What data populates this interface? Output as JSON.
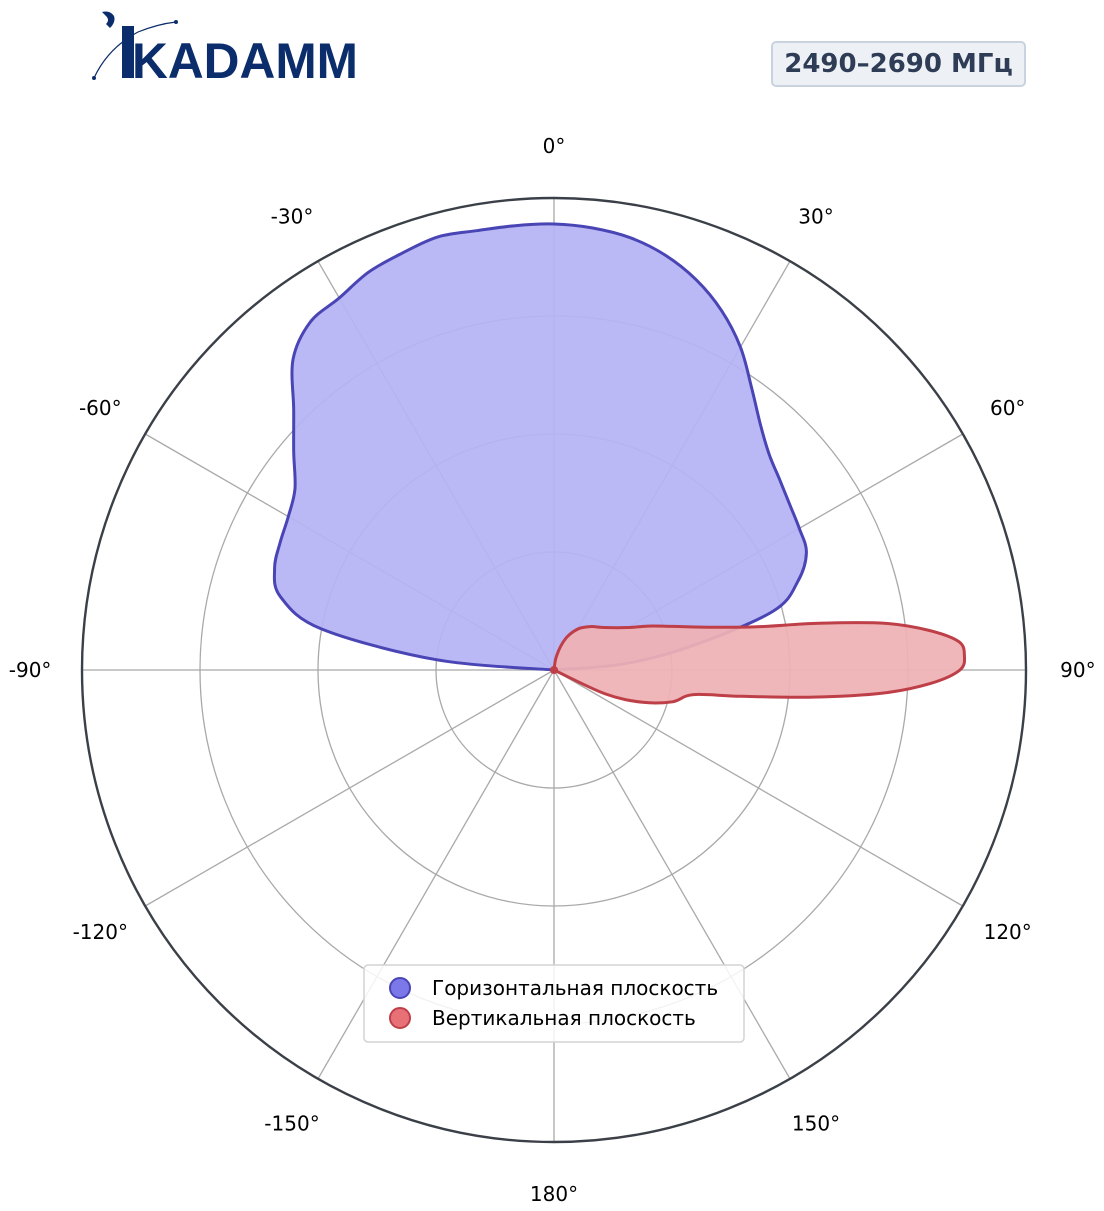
{
  "header": {
    "logo_text": "KADAMM",
    "band_label": "2490–2690 МГц"
  },
  "colors": {
    "horizontal_fill": "#b5b4f4",
    "horizontal_line": "#4a45b5",
    "vertical_fill": "#efb1b5",
    "vertical_line": "#be3f48",
    "grid": "#a9a9a9",
    "outer_ring": "#3b4048",
    "logo": "#0b2d6b"
  },
  "chart_data": {
    "type": "polar",
    "angle_ticks": [
      {
        "angle": 0,
        "label": "0°"
      },
      {
        "angle": 30,
        "label": "30°"
      },
      {
        "angle": 60,
        "label": "60°"
      },
      {
        "angle": 90,
        "label": "90°"
      },
      {
        "angle": 120,
        "label": "120°"
      },
      {
        "angle": 150,
        "label": "150°"
      },
      {
        "angle": 180,
        "label": "180°"
      },
      {
        "angle": -150,
        "label": "-150°"
      },
      {
        "angle": -120,
        "label": "-120°"
      },
      {
        "angle": -90,
        "label": "-90°"
      },
      {
        "angle": -60,
        "label": "-60°"
      },
      {
        "angle": -30,
        "label": "-30°"
      }
    ],
    "radial_grid": [
      0.25,
      0.5,
      0.75,
      1.0
    ],
    "rlim": [
      0,
      1
    ],
    "grid": true,
    "legend_position": "bottom-center",
    "series": [
      {
        "name": "Горизонтальная плоскость",
        "angles": [
          -90,
          -85,
          -80,
          -75,
          -70,
          -65,
          -60,
          -55,
          -50,
          -45,
          -40,
          -35,
          -30,
          -25,
          -20,
          -15,
          -10,
          -5,
          0,
          5,
          10,
          15,
          20,
          25,
          30,
          35,
          40,
          45,
          50,
          55,
          60,
          65,
          70,
          75,
          80,
          85,
          90
        ],
        "values": [
          0.0,
          0.25,
          0.5,
          0.6,
          0.63,
          0.64,
          0.65,
          0.67,
          0.72,
          0.78,
          0.86,
          0.9,
          0.91,
          0.93,
          0.94,
          0.95,
          0.945,
          0.945,
          0.945,
          0.94,
          0.93,
          0.91,
          0.88,
          0.84,
          0.79,
          0.73,
          0.68,
          0.645,
          0.625,
          0.61,
          0.6,
          0.59,
          0.55,
          0.48,
          0.3,
          0.15,
          0.0
        ]
      },
      {
        "name": "Вертикальная плоскость",
        "angles": [
          0,
          10,
          20,
          30,
          40,
          50,
          60,
          65,
          70,
          75,
          78,
          80,
          82,
          84,
          86,
          88,
          90,
          92,
          94,
          96,
          98,
          100,
          105,
          110,
          115,
          120
        ],
        "values": [
          0.0,
          0.03,
          0.07,
          0.1,
          0.12,
          0.14,
          0.18,
          0.22,
          0.27,
          0.35,
          0.44,
          0.57,
          0.71,
          0.8,
          0.86,
          0.87,
          0.86,
          0.8,
          0.7,
          0.55,
          0.4,
          0.3,
          0.26,
          0.2,
          0.12,
          0.0
        ]
      }
    ]
  }
}
